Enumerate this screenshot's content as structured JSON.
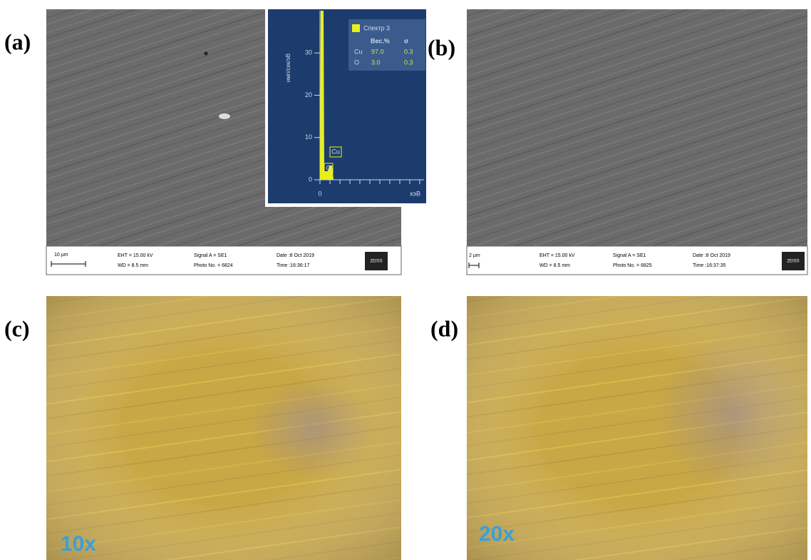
{
  "panels": [
    {
      "label": "(a)",
      "info": {
        "scale": "10 µm",
        "eht": "EHT = 15.00 kV",
        "wd": "WD = 8.5 mm",
        "signal": "Signal A = SE1",
        "photo": "Photo No. = 6824",
        "date": "Date :8 Oct 2019",
        "time": "Time :16:36:17",
        "brand": "ZEISS"
      }
    },
    {
      "label": "(b)",
      "info": {
        "scale": "2 µm",
        "eht": "EHT = 15.00 kV",
        "wd": "WD = 8.5 mm",
        "signal": "Signal A = SE1",
        "photo": "Photo No. = 6825",
        "date": "Date :8 Oct 2019",
        "time": "Time :16:37:35",
        "brand": "ZEISS"
      }
    },
    {
      "label": "(c)",
      "magnification": "10x"
    },
    {
      "label": "(d)",
      "magnification": "20x"
    }
  ],
  "inset": {
    "y_label": "имп/сек/эВ",
    "ylim": [
      0,
      40
    ],
    "yticks": [
      0,
      10,
      20,
      30
    ],
    "xticks": [
      0
    ],
    "x_unit": "кэВ",
    "legend": "Спектр 3",
    "peaks": [
      "Cu",
      "O"
    ],
    "table": {
      "header": [
        "Вес.%",
        "σ"
      ],
      "rows": [
        [
          "Cu",
          "97.0",
          "0.3"
        ],
        [
          "O",
          "3.0",
          "0.3"
        ]
      ]
    }
  }
}
